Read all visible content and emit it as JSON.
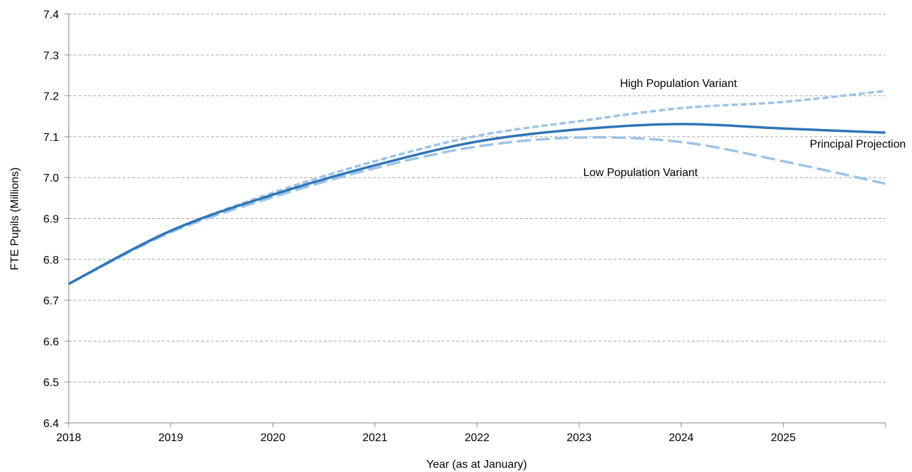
{
  "chart_data": {
    "type": "line",
    "title": "",
    "xlabel": "Year (as at January)",
    "ylabel": "FTE Pupils (Millions)",
    "xlim": [
      2018,
      2026
    ],
    "ylim": [
      6.4,
      7.4
    ],
    "grid": "horizontal-dashed",
    "legend": "none",
    "x_ticks": [
      "2018",
      "2019",
      "2020",
      "2021",
      "2022",
      "2023",
      "2024",
      "2025"
    ],
    "y_ticks": [
      "6.4",
      "6.5",
      "6.6",
      "6.7",
      "6.8",
      "6.9",
      "7.0",
      "7.1",
      "7.2",
      "7.3",
      "7.4"
    ],
    "x": [
      2018,
      2019,
      2020,
      2021,
      2022,
      2023,
      2024,
      2025,
      2026
    ],
    "series": [
      {
        "name": "High Population Variant",
        "style": "dashed",
        "color": "#9dc3e6",
        "values": [
          6.74,
          6.869,
          6.963,
          7.04,
          7.102,
          7.138,
          7.17,
          7.185,
          7.212
        ],
        "label_at": [
          2023.4,
          7.222
        ]
      },
      {
        "name": "Principal Projection",
        "style": "solid",
        "color": "#2e75b6",
        "values": [
          6.74,
          6.87,
          6.958,
          7.03,
          7.088,
          7.118,
          7.131,
          7.12,
          7.11
        ],
        "label_at": [
          2026.2,
          7.073
        ]
      },
      {
        "name": "Low Population Variant",
        "style": "dashed",
        "color": "#9dc3e6",
        "values": [
          6.74,
          6.866,
          6.952,
          7.023,
          7.076,
          7.098,
          7.087,
          7.04,
          6.985
        ],
        "label_at": [
          2023.04,
          7.004
        ]
      }
    ]
  }
}
